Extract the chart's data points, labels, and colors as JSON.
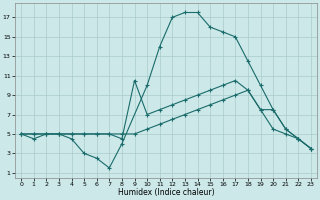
{
  "xlabel": "Humidex (Indice chaleur)",
  "background_color": "#cce8e8",
  "grid_color": "#aacccc",
  "line_color": "#1a6b6b",
  "xlim": [
    -0.5,
    23.5
  ],
  "ylim": [
    0.5,
    18.5
  ],
  "xticks": [
    0,
    1,
    2,
    3,
    4,
    5,
    6,
    7,
    8,
    9,
    10,
    11,
    12,
    13,
    14,
    15,
    16,
    17,
    18,
    19,
    20,
    21,
    22,
    23
  ],
  "yticks": [
    1,
    3,
    5,
    7,
    9,
    11,
    13,
    15,
    17
  ],
  "series1_x": [
    0,
    1,
    2,
    3,
    4,
    5,
    6,
    7,
    8,
    10,
    11,
    12,
    13,
    14,
    15,
    16,
    17,
    18,
    19,
    20,
    21,
    22,
    23
  ],
  "series1_y": [
    5,
    4.5,
    5,
    5,
    4.5,
    3,
    2.5,
    1.5,
    4,
    10,
    14,
    17,
    17.5,
    17.5,
    16,
    15.5,
    15,
    12.5,
    10,
    7.5,
    5.5,
    4.5,
    3.5
  ],
  "series2_x": [
    0,
    1,
    2,
    3,
    4,
    5,
    6,
    7,
    8,
    9,
    10,
    11,
    12,
    13,
    14,
    15,
    16,
    17,
    18,
    19,
    20,
    21,
    22,
    23
  ],
  "series2_y": [
    5,
    5,
    5,
    5,
    5,
    5,
    5,
    5,
    4.5,
    10.5,
    7,
    7.5,
    8,
    8.5,
    9,
    9.5,
    10,
    10.5,
    9.5,
    7.5,
    5.5,
    5,
    4.5,
    3.5
  ],
  "series3_x": [
    0,
    1,
    2,
    3,
    4,
    5,
    6,
    7,
    8,
    9,
    10,
    11,
    12,
    13,
    14,
    15,
    16,
    17,
    18,
    19,
    20,
    21,
    22,
    23
  ],
  "series3_y": [
    5,
    5,
    5,
    5,
    5,
    5,
    5,
    5,
    5,
    5,
    5.5,
    6,
    6.5,
    7,
    7.5,
    8,
    8.5,
    9,
    9.5,
    7.5,
    7.5,
    5.5,
    4.5,
    3.5
  ]
}
